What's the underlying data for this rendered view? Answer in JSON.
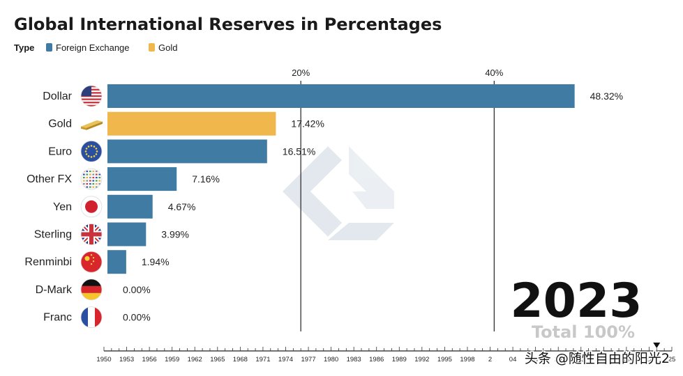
{
  "chart_data": {
    "type": "bar",
    "orientation": "horizontal",
    "title": "Global International Reserves in Percentages",
    "legend": {
      "title": "Type",
      "placement": "top-left",
      "entries": [
        {
          "name": "Foreign Exchange",
          "color": "#3f7ba3"
        },
        {
          "name": "Gold",
          "color": "#f0b84c"
        }
      ]
    },
    "categories": [
      "Dollar",
      "Gold",
      "Euro",
      "Other FX",
      "Yen",
      "Sterling",
      "Renminbi",
      "D-Mark",
      "Franc"
    ],
    "values": [
      48.32,
      17.42,
      16.51,
      7.16,
      4.67,
      3.99,
      1.94,
      0.0,
      0.0
    ],
    "value_labels": [
      "48.32%",
      "17.42%",
      "16.51%",
      "7.16%",
      "4.67%",
      "3.99%",
      "1.94%",
      "0.00%",
      "0.00%"
    ],
    "bar_types": [
      "Foreign Exchange",
      "Gold",
      "Foreign Exchange",
      "Foreign Exchange",
      "Foreign Exchange",
      "Foreign Exchange",
      "Foreign Exchange",
      "Foreign Exchange",
      "Foreign Exchange"
    ],
    "icons": [
      "us-flag-icon",
      "gold-bar-icon",
      "eu-flag-icon",
      "other-fx-flags-icon",
      "japan-flag-icon",
      "uk-flag-icon",
      "china-flag-icon",
      "germany-flag-icon",
      "france-flag-icon"
    ],
    "xlim": [
      0,
      49.5
    ],
    "xticks": [
      20,
      40
    ],
    "xtick_labels": [
      "20%",
      "40%"
    ],
    "grid": "vertical lines at ticks",
    "year": "2023",
    "total_label": "Total 100%",
    "timeline": {
      "start": 1950,
      "end": 2025,
      "labels": [
        "1950",
        "1953",
        "1956",
        "1959",
        "1962",
        "1965",
        "1968",
        "1971",
        "1974",
        "1977",
        "1980",
        "1983",
        "1986",
        "1989",
        "1992",
        "1995",
        "1998",
        "2",
        "04",
        "07",
        "10",
        "13",
        "16",
        "19",
        "22",
        "25"
      ],
      "current": 2023
    },
    "watermark_text": "头条 @随性自由的阳光2"
  }
}
